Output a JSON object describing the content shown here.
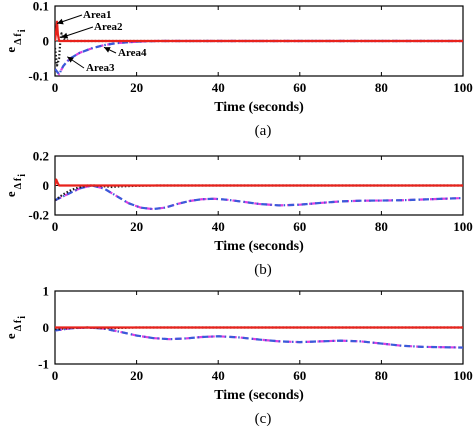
{
  "colors": {
    "Area1": "#e8221b",
    "Area2": "#1a1a1a",
    "Area3": "#3a5bd9",
    "Area4": "#e040e0"
  },
  "chart_data": [
    {
      "type": "line",
      "caption": "(a)",
      "xlabel": "Time (seconds)",
      "ylabel": "e",
      "ylabel_sub": "Δ f",
      "ylabel_subsub": "i",
      "xlim": [
        0,
        100
      ],
      "ylim": [
        -0.1,
        0.1
      ],
      "xticks": [
        "0",
        "20",
        "40",
        "60",
        "80",
        "100"
      ],
      "yticks": [
        "-0.1",
        "0",
        "0.1"
      ],
      "annotations": [
        {
          "text": "Area1",
          "series": "Area1",
          "target": [
            0.5,
            0.05
          ]
        },
        {
          "text": "Area2",
          "series": "Area2",
          "target": [
            1.6,
            0.01
          ]
        },
        {
          "text": "Area4",
          "series": "Area4",
          "target": [
            12,
            -0.018
          ]
        },
        {
          "text": "Area3",
          "series": "Area3",
          "target": [
            3,
            -0.045
          ]
        }
      ],
      "series": [
        {
          "key": "Area1",
          "color": "#e8221b",
          "style": "solid",
          "x": [
            0,
            0.3,
            0.5,
            0.7,
            1.0,
            2,
            100
          ],
          "y": [
            0,
            0.03,
            0.055,
            0.02,
            0,
            0,
            0
          ]
        },
        {
          "key": "Area2",
          "color": "#1a1a1a",
          "style": "dotted",
          "x": [
            0,
            0.5,
            1.0,
            1.3,
            1.6,
            2.0,
            2.5,
            3.5,
            100
          ],
          "y": [
            -0.02,
            -0.07,
            -0.05,
            0.0,
            0.022,
            0.01,
            0.003,
            0,
            0
          ]
        },
        {
          "key": "Area3",
          "color": "#3a5bd9",
          "style": "dashdot",
          "x": [
            0,
            1,
            2,
            3,
            4,
            6,
            9,
            12,
            15,
            20,
            25,
            100
          ],
          "y": [
            -0.08,
            -0.095,
            -0.072,
            -0.058,
            -0.048,
            -0.034,
            -0.021,
            -0.012,
            -0.006,
            -0.002,
            0,
            0
          ]
        },
        {
          "key": "Area4",
          "color": "#e040e0",
          "style": "dashed",
          "x": [
            0,
            1,
            2,
            3,
            4,
            6,
            9,
            12,
            15,
            20,
            25,
            100
          ],
          "y": [
            -0.08,
            -0.095,
            -0.072,
            -0.058,
            -0.048,
            -0.034,
            -0.021,
            -0.012,
            -0.006,
            -0.002,
            0,
            0
          ]
        }
      ]
    },
    {
      "type": "line",
      "caption": "(b)",
      "xlabel": "Time (seconds)",
      "ylabel": "e",
      "ylabel_sub": "Δ f",
      "ylabel_subsub": "i",
      "xlim": [
        0,
        100
      ],
      "ylim": [
        -0.2,
        0.2
      ],
      "xticks": [
        "0",
        "20",
        "40",
        "60",
        "80",
        "100"
      ],
      "yticks": [
        "-0.2",
        "0",
        "0.2"
      ],
      "series": [
        {
          "key": "Area1",
          "color": "#e8221b",
          "style": "solid",
          "x": [
            0,
            0.3,
            0.6,
            1.0,
            2,
            100
          ],
          "y": [
            0,
            0.04,
            0.02,
            0,
            0,
            0
          ]
        },
        {
          "key": "Area2",
          "color": "#1a1a1a",
          "style": "dotted",
          "x": [
            0,
            2,
            4,
            6,
            8,
            10,
            12,
            14,
            16,
            20,
            25,
            30,
            100
          ],
          "y": [
            -0.1,
            -0.06,
            -0.03,
            -0.012,
            0,
            0,
            -0.005,
            -0.01,
            -0.006,
            -0.002,
            0,
            0,
            0
          ]
        },
        {
          "key": "Area3",
          "color": "#3a5bd9",
          "style": "dashdot",
          "x": [
            0,
            3,
            6,
            9,
            12,
            15,
            18,
            21,
            24,
            27,
            30,
            33,
            36,
            39,
            42,
            46,
            50,
            55,
            60,
            65,
            70,
            75,
            80,
            85,
            90,
            95,
            100
          ],
          "y": [
            -0.1,
            -0.06,
            -0.02,
            0,
            -0.02,
            -0.07,
            -0.12,
            -0.15,
            -0.16,
            -0.15,
            -0.125,
            -0.105,
            -0.093,
            -0.09,
            -0.096,
            -0.11,
            -0.125,
            -0.135,
            -0.13,
            -0.118,
            -0.108,
            -0.103,
            -0.102,
            -0.1,
            -0.095,
            -0.09,
            -0.085
          ]
        },
        {
          "key": "Area4",
          "color": "#e040e0",
          "style": "dashed",
          "x": [
            0,
            3,
            6,
            9,
            12,
            15,
            18,
            21,
            24,
            27,
            30,
            33,
            36,
            39,
            42,
            46,
            50,
            55,
            60,
            65,
            70,
            75,
            80,
            85,
            90,
            95,
            100
          ],
          "y": [
            -0.1,
            -0.06,
            -0.02,
            0,
            -0.02,
            -0.07,
            -0.12,
            -0.15,
            -0.16,
            -0.15,
            -0.125,
            -0.105,
            -0.093,
            -0.09,
            -0.096,
            -0.11,
            -0.125,
            -0.135,
            -0.13,
            -0.118,
            -0.108,
            -0.103,
            -0.102,
            -0.1,
            -0.095,
            -0.09,
            -0.085
          ]
        }
      ]
    },
    {
      "type": "line",
      "caption": "(c)",
      "xlabel": "Time (seconds)",
      "ylabel": "e",
      "ylabel_sub": "Δ f",
      "ylabel_subsub": "i",
      "xlim": [
        0,
        100
      ],
      "ylim": [
        -1,
        1
      ],
      "xticks": [
        "0",
        "20",
        "40",
        "60",
        "80",
        "100"
      ],
      "yticks": [
        "-1",
        "0",
        "1"
      ],
      "series": [
        {
          "key": "Area1",
          "color": "#e8221b",
          "style": "solid",
          "x": [
            0,
            100
          ],
          "y": [
            0,
            0
          ]
        },
        {
          "key": "Area2",
          "color": "#1a1a1a",
          "style": "dotted",
          "x": [
            0,
            4,
            8,
            12,
            16,
            20,
            100
          ],
          "y": [
            -0.05,
            -0.01,
            0,
            -0.02,
            -0.01,
            0,
            0
          ]
        },
        {
          "key": "Area3",
          "color": "#3a5bd9",
          "style": "dashdot",
          "x": [
            0,
            4,
            8,
            12,
            16,
            20,
            24,
            28,
            32,
            36,
            40,
            45,
            50,
            55,
            60,
            65,
            70,
            75,
            80,
            85,
            90,
            95,
            100
          ],
          "y": [
            -0.08,
            -0.02,
            0,
            -0.03,
            -0.12,
            -0.22,
            -0.29,
            -0.32,
            -0.3,
            -0.26,
            -0.24,
            -0.27,
            -0.33,
            -0.38,
            -0.4,
            -0.38,
            -0.36,
            -0.38,
            -0.44,
            -0.5,
            -0.53,
            -0.54,
            -0.55
          ]
        },
        {
          "key": "Area4",
          "color": "#e040e0",
          "style": "dashed",
          "x": [
            0,
            4,
            8,
            12,
            16,
            20,
            24,
            28,
            32,
            36,
            40,
            45,
            50,
            55,
            60,
            65,
            70,
            75,
            80,
            85,
            90,
            95,
            100
          ],
          "y": [
            -0.08,
            -0.02,
            0,
            -0.03,
            -0.12,
            -0.22,
            -0.29,
            -0.32,
            -0.3,
            -0.26,
            -0.24,
            -0.27,
            -0.33,
            -0.38,
            -0.4,
            -0.38,
            -0.36,
            -0.38,
            -0.44,
            -0.5,
            -0.53,
            -0.54,
            -0.55
          ]
        }
      ]
    }
  ]
}
